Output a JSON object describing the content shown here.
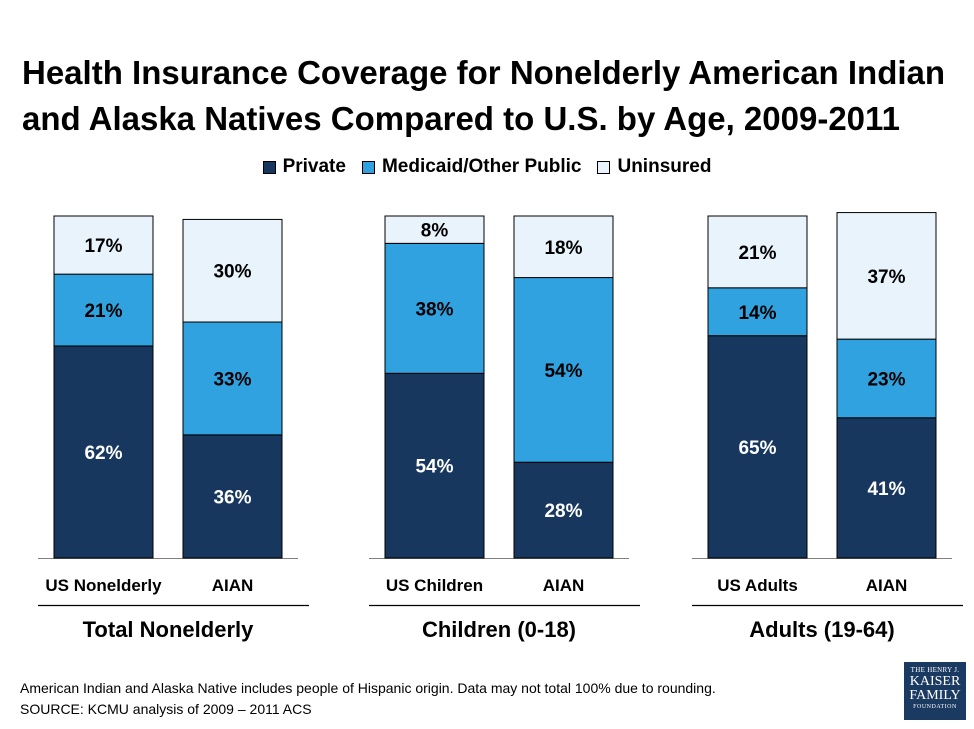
{
  "title_line1": "Health Insurance Coverage for Nonelderly American Indian",
  "title_line2": "and Alaska Natives Compared to U.S. by Age, 2009-2011",
  "footnote_line1": "American Indian and Alaska Native includes people of Hispanic origin. Data may not total 100% due to rounding.",
  "footnote_line2": "SOURCE: KCMU analysis of 2009 – 2011 ACS",
  "logo": {
    "line1": "THE HENRY J.",
    "line2": "KAISER",
    "line3": "FAMILY",
    "line4": "FOUNDATION"
  },
  "colors": {
    "private": "#17375e",
    "medicaid": "#31a2e0",
    "uninsured": "#e9f3fb",
    "outline": "#000000"
  },
  "chart_data": {
    "type": "bar",
    "stacked": true,
    "legend_placement": "top",
    "grid": false,
    "ylim": [
      0,
      100
    ],
    "series_names": [
      "Private",
      "Medicaid/Other Public",
      "Uninsured"
    ],
    "groups": [
      {
        "label": "Total Nonelderly",
        "bars": [
          {
            "label": "US Nonelderly",
            "values": [
              62,
              21,
              17
            ]
          },
          {
            "label": "AIAN",
            "values": [
              36,
              33,
              30
            ]
          }
        ]
      },
      {
        "label": "Children (0-18)",
        "bars": [
          {
            "label": "US Children",
            "values": [
              54,
              38,
              8
            ]
          },
          {
            "label": "AIAN",
            "values": [
              28,
              54,
              18
            ]
          }
        ]
      },
      {
        "label": "Adults (19-64)",
        "bars": [
          {
            "label": "US Adults",
            "values": [
              65,
              14,
              21
            ]
          },
          {
            "label": "AIAN",
            "values": [
              41,
              23,
              37
            ]
          }
        ]
      }
    ]
  }
}
